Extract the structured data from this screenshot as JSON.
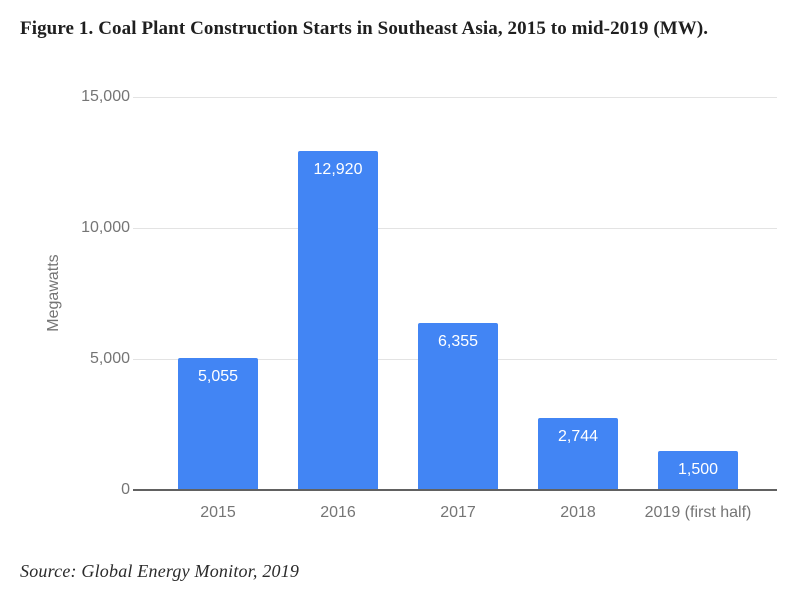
{
  "figure": {
    "title": "Figure 1. Coal Plant Construction Starts in Southeast Asia, 2015 to mid-2019 (MW).",
    "source": "Source: Global Energy Monitor, 2019"
  },
  "chart_data": {
    "type": "bar",
    "title": "Figure 1. Coal Plant Construction Starts in Southeast Asia, 2015 to mid-2019 (MW).",
    "categories": [
      "2015",
      "2016",
      "2017",
      "2018",
      "2019 (first half)"
    ],
    "values": [
      5055,
      12920,
      6355,
      2744,
      1500
    ],
    "value_labels": [
      "5,055",
      "12,920",
      "6,355",
      "2,744",
      "1,500"
    ],
    "xlabel": "",
    "ylabel": "Megawatts",
    "ylim": [
      0,
      15000
    ],
    "yticks": [
      0,
      5000,
      10000,
      15000
    ],
    "ytick_labels": [
      "0",
      "5,000",
      "10,000",
      "15,000"
    ],
    "grid": true,
    "legend": false,
    "annotation": "Source: Global Energy Monitor, 2019"
  },
  "colors": {
    "bar": "#4285f4",
    "bar_value_label": "#ffffff",
    "gridline": "#e3e3e3",
    "axis_line": "#616161",
    "tick_text": "#757575",
    "title_text": "#1f1f1f",
    "source_text": "#2b2b2b",
    "background": "#ffffff"
  }
}
